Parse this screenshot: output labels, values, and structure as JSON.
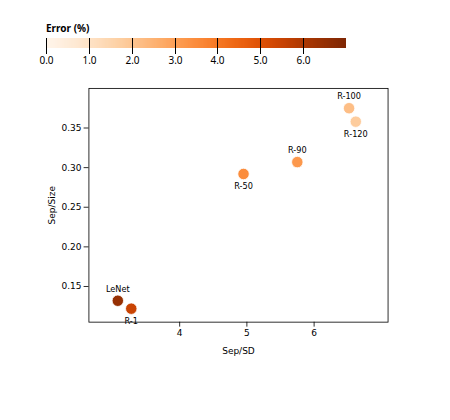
{
  "chart_data": {
    "type": "scatter",
    "xlabel": "Sep/SD",
    "ylabel": "Sep/Size",
    "points": [
      {
        "label": "LeNet",
        "x": 3.08,
        "y": 0.132,
        "error": 6.5
      },
      {
        "label": "R-1",
        "x": 3.28,
        "y": 0.122,
        "error": 5.5
      },
      {
        "label": "R-50",
        "x": 4.95,
        "y": 0.292,
        "error": 3.5
      },
      {
        "label": "R-90",
        "x": 5.75,
        "y": 0.307,
        "error": 3.2
      },
      {
        "label": "R-100",
        "x": 6.52,
        "y": 0.375,
        "error": 2.2
      },
      {
        "label": "R-120",
        "x": 6.62,
        "y": 0.358,
        "error": 1.8
      }
    ],
    "color": "Oranges",
    "colorbar": {
      "label": "Error (%)",
      "range": [
        0,
        7
      ],
      "ticks": [
        0,
        1,
        2,
        3,
        4,
        5,
        6
      ]
    },
    "xlim": [
      2.65,
      7.1
    ],
    "ylim": [
      0.105,
      0.4
    ],
    "xticks": [
      4,
      5,
      6
    ],
    "yticks": [
      0.15,
      {
        "value": 0.2,
        "label": "0.20"
      },
      0.25,
      {
        "value": 0.3,
        "label": "0.30"
      },
      0.35
    ]
  }
}
